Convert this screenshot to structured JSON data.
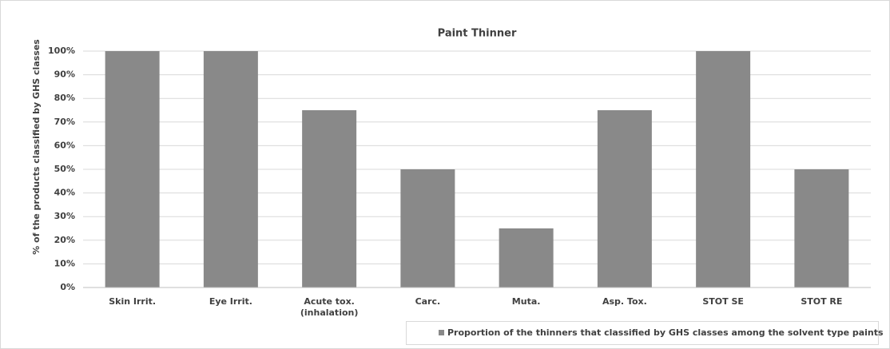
{
  "chart_data": {
    "type": "bar",
    "title": "Paint Thinner",
    "ylabel": "% of the products classified by GHS classes",
    "categories": [
      "Skin Irrit.",
      "Eye Irrit.",
      "Acute tox.\n(inhalation)",
      "Carc.",
      "Muta.",
      "Asp. Tox.",
      "STOT SE",
      "STOT RE"
    ],
    "series": [
      {
        "name": "Proportion of the thinners that classified by GHS classes among the solvent type paints",
        "color": "#898989",
        "values": [
          100,
          100,
          75,
          50,
          25,
          75,
          100,
          50
        ]
      }
    ],
    "ylim": [
      0,
      100
    ],
    "yticks": [
      {
        "value": 0,
        "label": "0%"
      },
      {
        "value": 10,
        "label": "10%"
      },
      {
        "value": 20,
        "label": "20%"
      },
      {
        "value": 30,
        "label": "30%"
      },
      {
        "value": 40,
        "label": "40%"
      },
      {
        "value": 50,
        "label": "50%"
      },
      {
        "value": 60,
        "label": "60%"
      },
      {
        "value": 70,
        "label": "70%"
      },
      {
        "value": 80,
        "label": "80%"
      },
      {
        "value": 90,
        "label": "90%"
      },
      {
        "value": 100,
        "label": "100%"
      }
    ],
    "grid": true,
    "legend": "bottom-right"
  }
}
